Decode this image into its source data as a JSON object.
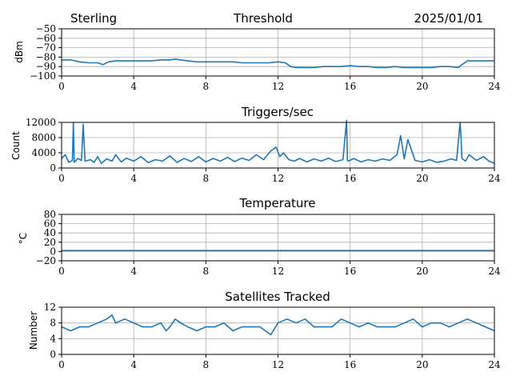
{
  "header": {
    "station": "Sterling",
    "date": "2025/01/01"
  },
  "chart_data": [
    {
      "type": "line",
      "title": "Threshold",
      "xlabel": "",
      "ylabel": "dBm",
      "xlim": [
        0,
        24
      ],
      "ylim": [
        -100,
        -50
      ],
      "xticks": [
        "0",
        "4",
        "8",
        "12",
        "16",
        "20",
        "24"
      ],
      "yticks": [
        "−50",
        "−60",
        "−70",
        "−80",
        "−90",
        "−100"
      ],
      "grid": true,
      "series": [
        {
          "x": [
            0,
            0.5,
            1,
            1.5,
            2,
            2.3,
            2.6,
            3,
            3.5,
            4,
            4.5,
            5,
            5.5,
            6,
            6.3,
            6.6,
            7,
            7.5,
            8,
            8.5,
            9,
            9.5,
            10,
            10.5,
            11,
            11.5,
            12,
            12.4,
            12.7,
            13,
            13.5,
            14,
            14.5,
            15,
            15.5,
            16,
            16.5,
            17,
            17.5,
            18,
            18.5,
            19,
            19.5,
            20,
            20.5,
            21,
            21.5,
            22,
            22.2,
            22.5,
            23,
            23.5,
            24
          ],
          "values": [
            -83,
            -83,
            -85,
            -86,
            -86,
            -88,
            -85,
            -84,
            -84,
            -84,
            -84,
            -84,
            -83,
            -83,
            -82,
            -83,
            -84,
            -85,
            -85,
            -85,
            -85,
            -85,
            -86,
            -86,
            -86,
            -86,
            -85,
            -86,
            -90,
            -91,
            -91,
            -91,
            -90,
            -90,
            -90,
            -89,
            -90,
            -90,
            -91,
            -91,
            -90,
            -91,
            -91,
            -91,
            -91,
            -90,
            -90,
            -91,
            -88,
            -84,
            -84,
            -84,
            -84
          ]
        }
      ]
    },
    {
      "type": "line",
      "title": "Triggers/sec",
      "xlabel": "",
      "ylabel": "Count",
      "xlim": [
        0,
        24
      ],
      "ylim": [
        0,
        12000
      ],
      "xticks": [
        "0",
        "4",
        "8",
        "12",
        "16",
        "20",
        "24"
      ],
      "yticks": [
        "12000",
        "8000",
        "4000",
        "0"
      ],
      "grid": true,
      "series": [
        {
          "x": [
            0,
            0.2,
            0.4,
            0.6,
            0.65,
            0.7,
            0.9,
            1.1,
            1.2,
            1.3,
            1.6,
            1.8,
            2.0,
            2.2,
            2.5,
            2.8,
            3.0,
            3.3,
            3.6,
            4.0,
            4.4,
            4.8,
            5.2,
            5.6,
            6.0,
            6.4,
            6.8,
            7.2,
            7.6,
            8.0,
            8.4,
            8.8,
            9.2,
            9.6,
            10.0,
            10.4,
            10.8,
            11.2,
            11.6,
            11.9,
            12.1,
            12.3,
            12.6,
            12.9,
            13.2,
            13.6,
            14.0,
            14.4,
            14.8,
            15.2,
            15.6,
            15.8,
            15.85,
            15.9,
            16.2,
            16.6,
            17.0,
            17.4,
            17.8,
            18.2,
            18.6,
            18.8,
            19.0,
            19.2,
            19.6,
            20.0,
            20.4,
            20.8,
            21.2,
            21.6,
            21.9,
            22.1,
            22.15,
            22.2,
            22.4,
            22.6,
            23.0,
            23.4,
            23.7,
            24
          ],
          "values": [
            2500,
            3500,
            1500,
            2000,
            12000,
            1500,
            2500,
            2000,
            11500,
            1800,
            2200,
            1500,
            3000,
            1200,
            2400,
            1800,
            3500,
            1600,
            2600,
            1800,
            3000,
            1400,
            2200,
            1800,
            3200,
            1500,
            2500,
            1700,
            3000,
            1600,
            2500,
            1800,
            2800,
            1700,
            2600,
            2000,
            3500,
            2200,
            4500,
            5500,
            3000,
            4000,
            2200,
            1800,
            2500,
            1600,
            2400,
            1800,
            2600,
            1700,
            2200,
            12500,
            2000,
            1800,
            2500,
            1600,
            2200,
            1800,
            2400,
            2000,
            3500,
            8500,
            2400,
            7500,
            2000,
            1600,
            2200,
            1500,
            1800,
            2400,
            2000,
            12000,
            8000,
            2500,
            1800,
            3500,
            2000,
            3000,
            1800,
            1200
          ]
        }
      ]
    },
    {
      "type": "line",
      "title": "Temperature",
      "xlabel": "",
      "ylabel": "°C",
      "xlim": [
        0,
        24
      ],
      "ylim": [
        -20,
        80
      ],
      "xticks": [
        "0",
        "4",
        "8",
        "12",
        "16",
        "20",
        "24"
      ],
      "yticks": [
        "80",
        "60",
        "40",
        "20",
        "0",
        "−20"
      ],
      "grid": true,
      "series": [
        {
          "x": [
            0,
            24
          ],
          "values": [
            2,
            2
          ]
        }
      ]
    },
    {
      "type": "line",
      "title": "Satellites Tracked",
      "xlabel": "",
      "ylabel": "Number",
      "xlim": [
        0,
        24
      ],
      "ylim": [
        0,
        12
      ],
      "xticks": [
        "0",
        "4",
        "8",
        "12",
        "16",
        "20",
        "24"
      ],
      "yticks": [
        "12",
        "8",
        "4",
        "0"
      ],
      "grid": true,
      "series": [
        {
          "x": [
            0,
            0.5,
            1,
            1.5,
            2,
            2.5,
            2.8,
            3,
            3.5,
            4,
            4.5,
            5,
            5.5,
            5.8,
            6,
            6.3,
            6.6,
            7,
            7.5,
            8,
            8.5,
            9,
            9.5,
            10,
            10.5,
            11,
            11.3,
            11.6,
            12,
            12.5,
            13,
            13.5,
            14,
            14.5,
            15,
            15.5,
            16,
            16.5,
            17,
            17.5,
            18,
            18.5,
            19,
            19.5,
            20,
            20.5,
            21,
            21.5,
            22,
            22.5,
            23,
            23.5,
            24
          ],
          "values": [
            7,
            6,
            7,
            7,
            8,
            9,
            10,
            8,
            9,
            8,
            7,
            7,
            8,
            6,
            7,
            9,
            8,
            7,
            6,
            7,
            7,
            8,
            6,
            7,
            7,
            7,
            6,
            5,
            8,
            9,
            8,
            9,
            7,
            7,
            7,
            9,
            8,
            7,
            8,
            7,
            7,
            7,
            8,
            9,
            7,
            8,
            8,
            7,
            8,
            9,
            8,
            7,
            6
          ]
        }
      ]
    }
  ]
}
